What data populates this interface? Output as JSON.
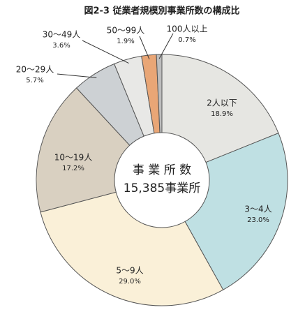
{
  "chart_data": {
    "type": "donut",
    "title": "図2-3 従業者規模別事業所数の構成比",
    "categories": [
      "2人以下",
      "3～4人",
      "5～9人",
      "10～19人",
      "20～29人",
      "30～49人",
      "50～99人",
      "100人以上"
    ],
    "values": [
      18.9,
      23.0,
      29.0,
      17.2,
      5.7,
      3.6,
      1.9,
      0.7
    ],
    "value_labels": [
      "18.9%",
      "23.0%",
      "29.0%",
      "17.2%",
      "5.7%",
      "3.6%",
      "1.9%",
      "0.7%"
    ],
    "colors": [
      "#e6e6e2",
      "#bfe0e3",
      "#faf0d8",
      "#d9d0c1",
      "#cdd1d4",
      "#e8e8e6",
      "#e9a676",
      "#bdbdbd"
    ],
    "center_text": [
      "事 業 所 数",
      "15,385事業所"
    ]
  }
}
